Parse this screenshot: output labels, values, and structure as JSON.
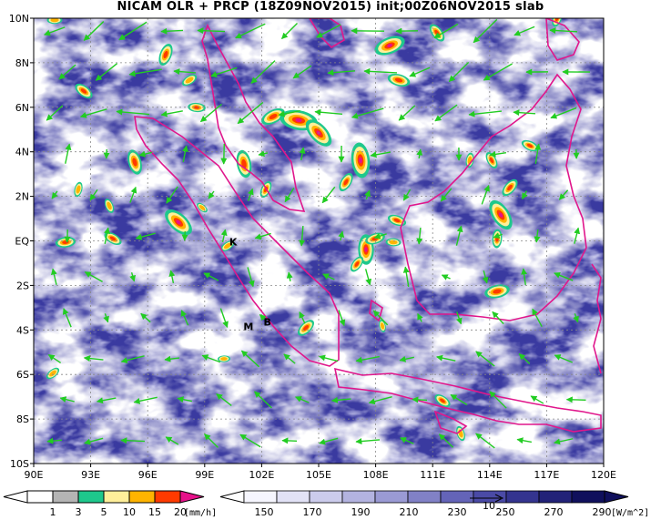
{
  "title": "NICAM OLR + PRCP (18Z09NOV2015) init;00Z06NOV2015 slab",
  "map": {
    "lat_labels": [
      "10N",
      "8N",
      "6N",
      "4N",
      "2N",
      "EQ",
      "2S",
      "4S",
      "6S",
      "8S",
      "10S"
    ],
    "lon_labels": [
      "90E",
      "93E",
      "96E",
      "99E",
      "102E",
      "105E",
      "108E",
      "111E",
      "114E",
      "117E",
      "120E"
    ],
    "lon_range": [
      90,
      120
    ],
    "lat_range": [
      -10,
      10
    ],
    "station_labels": [
      {
        "text": "K",
        "lon": 100.5,
        "lat": -0.2
      },
      {
        "text": "M",
        "lon": 101.3,
        "lat": -4.0
      },
      {
        "text": "B",
        "lon": 102.3,
        "lat": -3.8
      }
    ],
    "coastline_color": "#e0178c",
    "wind_color": "#22cc22",
    "gridline_style": "dashed"
  },
  "precip_legend": {
    "labels": [
      "1",
      "3",
      "5",
      "10",
      "15",
      "20"
    ],
    "unit": "[mm/h]",
    "colors": [
      "#b4b4b4",
      "#1ec88c",
      "#ffef9a",
      "#ffb400",
      "#ff3a00",
      "#e6118a"
    ]
  },
  "olr_legend": {
    "labels": [
      "150",
      "170",
      "190",
      "210",
      "230",
      "250",
      "270",
      "290"
    ],
    "unit": "[W/m^2]",
    "reference_vector_label": "10",
    "colors": [
      "#f6f6fe",
      "#e2e2f6",
      "#ccccec",
      "#b3b3e0",
      "#9a9ad4",
      "#8181c6",
      "#6464b8",
      "#4a4aa6",
      "#34348f",
      "#222278",
      "#10105c"
    ]
  }
}
